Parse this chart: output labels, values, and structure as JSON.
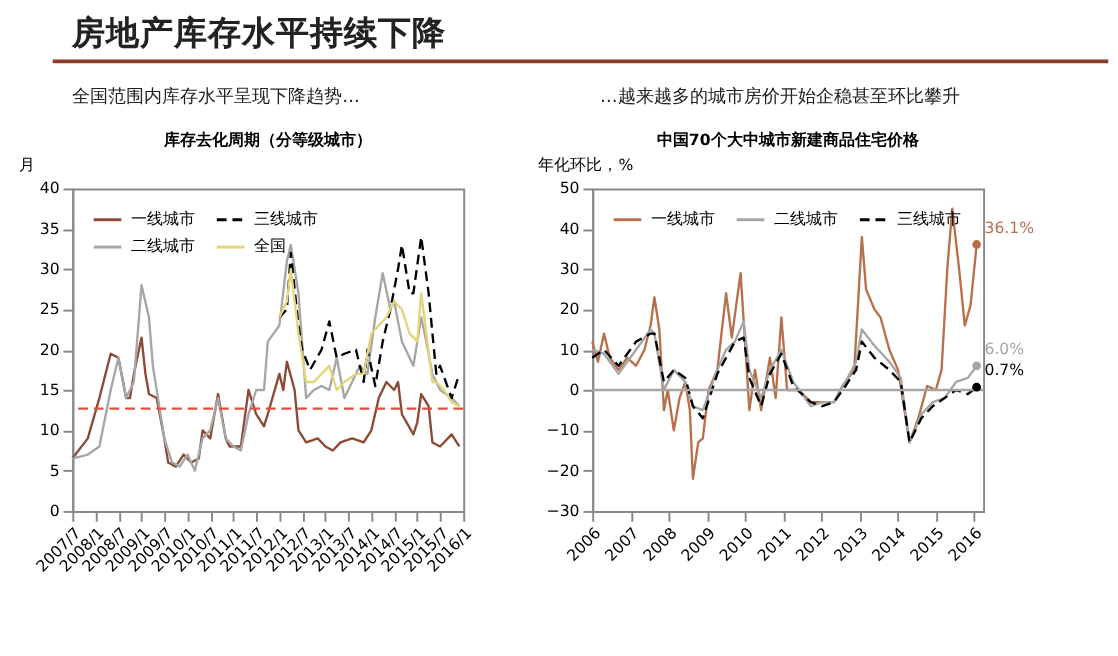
{
  "chart_data": [
    {
      "type": "line",
      "title": "库存去化周期（分等级城市）",
      "annotations": [
        "房地产库存水平持续下降",
        "全国范围内库存水平呈现下降趋势…"
      ],
      "ylabel": "月",
      "ylim": [
        0,
        40
      ],
      "yticks": [
        0,
        5,
        10,
        15,
        20,
        25,
        30,
        35,
        40
      ],
      "xlim": [
        "2007-07",
        "2016-01"
      ],
      "xticks": [
        {
          "value": "2007-07",
          "label": "2007/7"
        },
        {
          "value": "2008-01",
          "label": "2008/1"
        },
        {
          "value": "2008-07",
          "label": "2008/7"
        },
        {
          "value": "2009-01",
          "label": "2009/1"
        },
        {
          "value": "2009-07",
          "label": "2009/7"
        },
        {
          "value": "2010-01",
          "label": "2010/1"
        },
        {
          "value": "2010-07",
          "label": "2010/7"
        },
        {
          "value": "2011-01",
          "label": "2011/1"
        },
        {
          "value": "2011-07",
          "label": "2011/7"
        },
        {
          "value": "2012-01",
          "label": "2012/1"
        },
        {
          "value": "2012-07",
          "label": "2012/7"
        },
        {
          "value": "2013-01",
          "label": "2013/1"
        },
        {
          "value": "2013-07",
          "label": "2013/7"
        },
        {
          "value": "2014-01",
          "label": "2014/1"
        },
        {
          "value": "2014-07",
          "label": "2014/7"
        },
        {
          "value": "2015-01",
          "label": "2015/1"
        },
        {
          "value": "2015-07",
          "label": "2015/7"
        },
        {
          "value": "2016-01",
          "label": "2016/1"
        }
      ],
      "grid": false,
      "legend": "top left",
      "series": [
        {
          "name": "一线城市",
          "color": "#8c4a36",
          "line_style": "solid",
          "x": [
            "2007-07",
            "2007-11",
            "2008-02",
            "2008-05",
            "2008-07",
            "2008-09",
            "2008-10",
            "2008-11",
            "2009-01",
            "2009-02",
            "2009-03",
            "2009-05",
            "2009-07",
            "2009-08",
            "2009-10",
            "2009-12",
            "2010-02",
            "2010-04",
            "2010-05",
            "2010-07",
            "2010-09",
            "2010-11",
            "2010-12",
            "2011-03",
            "2011-05",
            "2011-07",
            "2011-09",
            "2011-10",
            "2012-01",
            "2012-02",
            "2012-03",
            "2012-05",
            "2012-06",
            "2012-08",
            "2012-11",
            "2013-01",
            "2013-03",
            "2013-05",
            "2013-08",
            "2013-11",
            "2014-01",
            "2014-03",
            "2014-05",
            "2014-07",
            "2014-08",
            "2014-09",
            "2014-12",
            "2015-01",
            "2015-02",
            "2015-04",
            "2015-05",
            "2015-07",
            "2015-10",
            "2015-12"
          ],
          "values": [
            6.5,
            9,
            14,
            19.5,
            19,
            14,
            14,
            17,
            21.5,
            17,
            14.5,
            14,
            9,
            6,
            5.5,
            7,
            6,
            6.5,
            10,
            9,
            14.5,
            9,
            8,
            8,
            15,
            12,
            10.5,
            12,
            17,
            15,
            18.5,
            15,
            10,
            8.5,
            9,
            8,
            7.5,
            8.5,
            9,
            8.5,
            10,
            14,
            16,
            15,
            16,
            12,
            9.5,
            11,
            14.5,
            13,
            8.5,
            8,
            9.5,
            8
          ]
        },
        {
          "name": "二线城市",
          "color": "#a6a6a6",
          "line_style": "solid",
          "x": [
            "2007-07",
            "2007-11",
            "2008-02",
            "2008-05",
            "2008-07",
            "2008-09",
            "2008-11",
            "2009-01",
            "2009-03",
            "2009-04",
            "2009-07",
            "2009-09",
            "2009-11",
            "2010-01",
            "2010-03",
            "2010-05",
            "2010-07",
            "2010-09",
            "2010-11",
            "2011-01",
            "2011-03",
            "2011-05",
            "2011-07",
            "2011-09",
            "2011-10",
            "2012-01",
            "2012-03",
            "2012-04",
            "2012-06",
            "2012-08",
            "2012-10",
            "2012-12",
            "2013-02",
            "2013-04",
            "2013-06",
            "2013-08",
            "2013-10",
            "2013-12",
            "2014-02",
            "2014-04",
            "2014-06",
            "2014-07",
            "2014-09",
            "2014-12",
            "2015-02",
            "2015-03",
            "2015-05",
            "2015-06",
            "2015-07",
            "2015-10",
            "2015-12"
          ],
          "values": [
            6.5,
            7,
            8,
            15,
            19,
            14,
            16,
            28,
            24,
            18,
            9,
            6,
            5.5,
            7,
            5,
            9,
            10,
            14,
            9,
            8,
            7.5,
            12,
            15,
            15,
            21,
            23,
            31,
            33,
            27,
            14,
            15,
            15.5,
            15,
            19,
            14,
            16,
            18,
            17,
            24,
            29.5,
            25,
            26,
            21,
            18,
            24,
            22,
            17,
            16,
            15,
            14,
            13
          ]
        },
        {
          "name": "三线城市",
          "color": "#000000",
          "line_style": "dashed",
          "x": [
            "2012-01",
            "2012-03",
            "2012-04",
            "2012-06",
            "2012-07",
            "2012-09",
            "2012-12",
            "2013-02",
            "2013-04",
            "2013-06",
            "2013-09",
            "2013-11",
            "2013-12",
            "2014-02",
            "2014-04",
            "2014-06",
            "2014-08",
            "2014-09",
            "2014-11",
            "2014-12",
            "2015-02",
            "2015-04",
            "2015-06",
            "2015-07",
            "2015-10",
            "2015-12"
          ],
          "values": [
            24,
            25,
            32,
            23,
            20,
            17.5,
            20,
            23.5,
            19,
            19.5,
            20,
            16,
            20,
            15.5,
            21,
            25,
            30,
            33,
            27,
            27,
            34,
            27,
            17,
            18,
            14,
            17
          ]
        },
        {
          "name": "全国",
          "color": "#e3d57a",
          "line_style": "solid",
          "x": [
            "2012-01",
            "2012-03",
            "2012-04",
            "2012-06",
            "2012-08",
            "2012-10",
            "2012-12",
            "2013-02",
            "2013-04",
            "2013-06",
            "2013-09",
            "2013-11",
            "2014-01",
            "2014-03",
            "2014-05",
            "2014-07",
            "2014-09",
            "2014-11",
            "2015-01",
            "2015-02",
            "2015-05",
            "2015-06",
            "2015-08",
            "2015-10",
            "2015-12"
          ],
          "values": [
            24,
            26,
            30,
            22,
            16,
            16,
            17,
            18,
            15,
            16,
            17,
            17,
            22,
            23,
            24,
            26,
            25,
            22,
            21,
            27,
            16,
            16,
            15,
            13.5,
            13
          ]
        }
      ],
      "ref_lines": [
        {
          "axis": "y",
          "value": 12.7,
          "color": "#e0503c",
          "line_style": "dashed"
        }
      ]
    },
    {
      "type": "line",
      "title": "中国70个大中城市新建商品住宅价格",
      "annotations": [
        "…越来越多的城市房价开始企稳甚至环比攀升"
      ],
      "ylabel": "年化环比，%",
      "ylim": [
        -30,
        50
      ],
      "yticks": [
        -30,
        -20,
        -10,
        0,
        10,
        20,
        30,
        40,
        50
      ],
      "xlim": [
        2006,
        2016.25
      ],
      "xticks": [
        2006,
        2007,
        2008,
        2009,
        2010,
        2011,
        2012,
        2013,
        2014,
        2015,
        2016
      ],
      "grid": false,
      "legend": "top left",
      "series": [
        {
          "name": "一线城市",
          "color": "#b8704c",
          "line_style": "solid",
          "x": [
            2006.0,
            2006.15,
            2006.31,
            2006.46,
            2006.69,
            2006.92,
            2007.15,
            2007.37,
            2007.53,
            2007.63,
            2007.76,
            2007.88,
            2007.98,
            2008.14,
            2008.29,
            2008.44,
            2008.56,
            2008.64,
            2008.78,
            2008.9,
            2009.05,
            2009.28,
            2009.51,
            2009.66,
            2009.89,
            2010.02,
            2010.12,
            2010.27,
            2010.43,
            2010.66,
            2010.81,
            2010.96,
            2011.11,
            2011.42,
            2011.73,
            2012.03,
            2012.34,
            2012.56,
            2012.87,
            2013.07,
            2013.18,
            2013.4,
            2013.56,
            2013.79,
            2014.02,
            2014.32,
            2014.55,
            2014.78,
            2015.01,
            2015.16,
            2015.31,
            2015.44,
            2015.62,
            2015.77,
            2015.92,
            2016.08
          ],
          "values": [
            12,
            7,
            14,
            8,
            5,
            8,
            6,
            10,
            16,
            23,
            15,
            -5,
            0,
            -10,
            -2,
            2,
            -5,
            -22,
            -13,
            -12,
            0,
            5,
            24,
            13,
            29,
            10,
            -5,
            5,
            -5,
            8,
            -2,
            18,
            0,
            0,
            -3,
            -3,
            -3,
            1,
            5,
            38,
            25,
            20,
            18,
            10,
            5,
            -13,
            -7,
            1,
            0,
            5,
            30,
            45,
            30,
            16,
            21,
            36.1
          ],
          "value_labels": [
            null,
            null,
            null,
            null,
            null,
            null,
            null,
            null,
            null,
            null,
            null,
            null,
            null,
            null,
            null,
            null,
            null,
            null,
            null,
            null,
            null,
            null,
            null,
            null,
            null,
            null,
            null,
            null,
            null,
            null,
            null,
            null,
            null,
            null,
            null,
            null,
            null,
            null,
            null,
            null,
            null,
            null,
            null,
            null,
            null,
            null,
            null,
            null,
            null,
            null,
            null,
            null,
            null,
            null,
            null,
            "36.1%"
          ]
        },
        {
          "name": "二线城市",
          "color": "#a6a6a6",
          "line_style": "solid",
          "x": [
            2006.0,
            2006.31,
            2006.69,
            2007.15,
            2007.53,
            2007.63,
            2007.88,
            2008.14,
            2008.44,
            2008.64,
            2008.9,
            2009.28,
            2009.51,
            2009.74,
            2009.97,
            2010.12,
            2010.43,
            2010.66,
            2010.96,
            2011.27,
            2011.73,
            2012.03,
            2012.34,
            2012.64,
            2012.92,
            2013.07,
            2013.4,
            2013.79,
            2014.09,
            2014.32,
            2014.63,
            2014.93,
            2015.24,
            2015.54,
            2015.85,
            2016.08
          ],
          "values": [
            10,
            9,
            4,
            10,
            15,
            14,
            0,
            5,
            2,
            -4,
            -5,
            5,
            10,
            12,
            17,
            5,
            -2,
            5,
            10,
            2,
            -4,
            -3,
            -3,
            2,
            7,
            15,
            11,
            7,
            3,
            -13,
            -6,
            -3,
            -2,
            2,
            3,
            6.0
          ],
          "value_labels": [
            null,
            null,
            null,
            null,
            null,
            null,
            null,
            null,
            null,
            null,
            null,
            null,
            null,
            null,
            null,
            null,
            null,
            null,
            null,
            null,
            null,
            null,
            null,
            null,
            null,
            null,
            null,
            null,
            null,
            null,
            null,
            null,
            null,
            null,
            null,
            "6.0%"
          ]
        },
        {
          "name": "三线城市",
          "color": "#000000",
          "line_style": "dashed",
          "x": [
            2006.0,
            2006.31,
            2006.69,
            2007.15,
            2007.53,
            2007.63,
            2007.88,
            2008.14,
            2008.44,
            2008.64,
            2008.9,
            2009.28,
            2009.51,
            2009.74,
            2009.97,
            2010.12,
            2010.43,
            2010.66,
            2010.96,
            2011.27,
            2011.73,
            2012.03,
            2012.34,
            2012.64,
            2012.92,
            2013.07,
            2013.4,
            2013.79,
            2014.09,
            2014.32,
            2014.63,
            2014.93,
            2015.24,
            2015.54,
            2015.85,
            2016.08
          ],
          "values": [
            8,
            10,
            6,
            12,
            14,
            14,
            2,
            5,
            3,
            -4,
            -7,
            4,
            8,
            12,
            13,
            3,
            -4,
            4,
            9,
            1,
            -3,
            -4,
            -3,
            1,
            5,
            12,
            8,
            5,
            2,
            -13,
            -7,
            -4,
            -2,
            0,
            -1,
            0.7
          ],
          "value_labels": [
            null,
            null,
            null,
            null,
            null,
            null,
            null,
            null,
            null,
            null,
            null,
            null,
            null,
            null,
            null,
            null,
            null,
            null,
            null,
            null,
            null,
            null,
            null,
            null,
            null,
            null,
            null,
            null,
            null,
            null,
            null,
            null,
            null,
            null,
            null,
            "0.7%"
          ]
        }
      ],
      "ref_lines": [
        {
          "axis": "y",
          "value": 0,
          "color": "#a6a6a6",
          "line_style": "solid"
        }
      ]
    }
  ]
}
